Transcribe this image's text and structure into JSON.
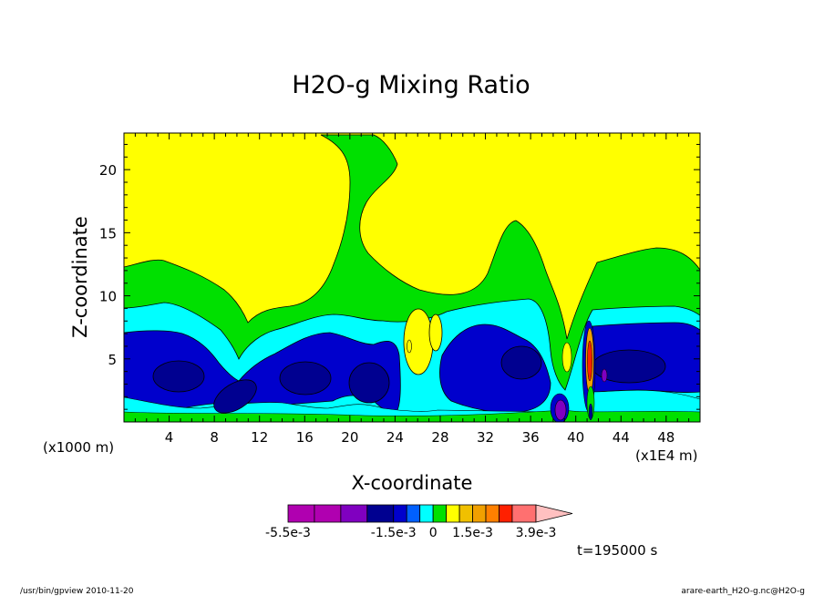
{
  "chart_data": {
    "type": "heatmap",
    "title": "H2O-g Mixing Ratio",
    "xlabel": "X-coordinate",
    "ylabel": "Z-coordinate",
    "x_unit": "(x1000 m)",
    "x_scale_note": "(x1E4 m)",
    "xlim": [
      0,
      51
    ],
    "ylim": [
      0,
      22.9
    ],
    "xticks": [
      4,
      8,
      12,
      16,
      20,
      24,
      28,
      32,
      36,
      40,
      44,
      48
    ],
    "yticks": [
      5,
      10,
      15,
      20
    ],
    "xtick_labels": [
      "4",
      "8",
      "12",
      "16",
      "20",
      "24",
      "28",
      "32",
      "36",
      "40",
      "44",
      "48"
    ],
    "ytick_labels": [
      "5",
      "10",
      "15",
      "20"
    ],
    "colorbar": {
      "levels": [
        -0.0055,
        -0.0045,
        -0.0035,
        -0.0025,
        -0.0015,
        -0.001,
        -0.0005,
        0,
        0.0005,
        0.001,
        0.0015,
        0.002,
        0.0025,
        0.003,
        0.0039,
        0.0045
      ],
      "colors": [
        "#b000b0",
        "#b000b0",
        "#8000c0",
        "#000090",
        "#0000cc",
        "#0060ff",
        "#00ffff",
        "#00e000",
        "#ffff00",
        "#f0c000",
        "#f0a000",
        "#ff8000",
        "#ff2000",
        "#ff7070",
        "#ffc0c0"
      ],
      "labels": [
        "-5.5e-3",
        "-1.5e-3",
        "0",
        "1.5e-3",
        "3.9e-3"
      ]
    },
    "time_label": "t=195000 s",
    "field_regions": [
      {
        "color": "#ffff00",
        "desc": "upper atmosphere"
      },
      {
        "color": "#00e000",
        "desc": "mid layer and plume"
      },
      {
        "color": "#00ffff",
        "desc": "lower band"
      },
      {
        "color": "#0000cc",
        "desc": "low-level blue"
      },
      {
        "color": "#000090",
        "desc": "embedded cells"
      }
    ]
  },
  "footer": {
    "left": "/usr/bin/gpview   2010-11-20",
    "right": "arare-earth_H2O-g.nc@H2O-g"
  }
}
